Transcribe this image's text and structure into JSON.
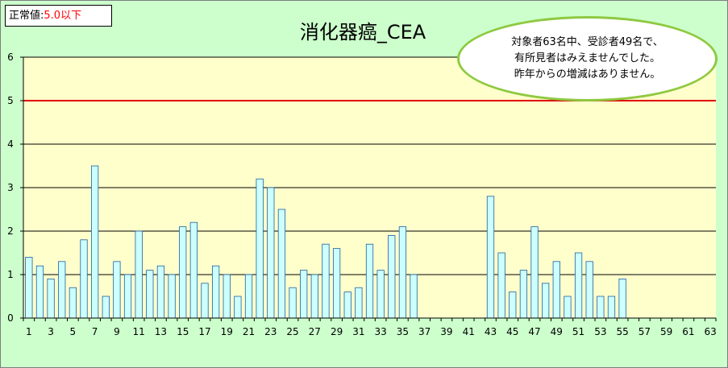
{
  "normal_range": {
    "label": "正常値:",
    "value": "5.0以下",
    "value_color": "#ff0000"
  },
  "callout": {
    "lines": [
      "対象者63名中、受診者49名で、",
      "有所見者はみえませんでした。",
      "昨年からの増減はありません。"
    ]
  },
  "colors": {
    "plot_background": "#ffffcc",
    "bar_fill": "#ccffff",
    "bar_stroke": "#1f5fa0",
    "reference_line": "#e00000",
    "gridline": "#000000",
    "outer_background": "#ccffcc",
    "callout_border": "#8fc941"
  },
  "chart_data": {
    "type": "bar",
    "title": "消化器癌_CEA",
    "xlabel": "",
    "ylabel": "",
    "ylim": [
      0,
      6
    ],
    "yticks": [
      0,
      1,
      2,
      3,
      4,
      5,
      6
    ],
    "xticks_labeled": [
      1,
      3,
      5,
      7,
      9,
      11,
      13,
      15,
      17,
      19,
      21,
      23,
      25,
      27,
      29,
      31,
      33,
      35,
      37,
      39,
      41,
      43,
      45,
      47,
      49,
      51,
      53,
      55,
      57,
      59,
      61,
      63
    ],
    "grid": true,
    "reference_line": {
      "value": 5.0
    },
    "categories": [
      1,
      2,
      3,
      4,
      5,
      6,
      7,
      8,
      9,
      10,
      11,
      12,
      13,
      14,
      15,
      16,
      17,
      18,
      19,
      20,
      21,
      22,
      23,
      24,
      25,
      26,
      27,
      28,
      29,
      30,
      31,
      32,
      33,
      34,
      35,
      36,
      37,
      38,
      39,
      40,
      41,
      42,
      43,
      44,
      45,
      46,
      47,
      48,
      49,
      50,
      51,
      52,
      53,
      54,
      55,
      56,
      57,
      58,
      59,
      60,
      61,
      62,
      63
    ],
    "values": [
      1.4,
      1.2,
      0.9,
      1.3,
      0.7,
      1.8,
      3.5,
      0.5,
      1.3,
      1.0,
      2.0,
      1.1,
      1.2,
      1.0,
      2.1,
      2.2,
      0.8,
      1.2,
      1.0,
      0.5,
      1.0,
      3.2,
      3.0,
      2.5,
      0.7,
      1.1,
      1.0,
      1.7,
      1.6,
      0.6,
      0.7,
      1.7,
      1.1,
      1.9,
      2.1,
      1.0,
      null,
      null,
      null,
      null,
      null,
      null,
      2.8,
      1.5,
      0.6,
      1.1,
      2.1,
      0.8,
      1.3,
      0.5,
      1.5,
      1.3,
      0.5,
      0.5,
      0.9,
      null,
      null,
      null,
      null,
      null,
      null,
      null,
      null
    ]
  }
}
